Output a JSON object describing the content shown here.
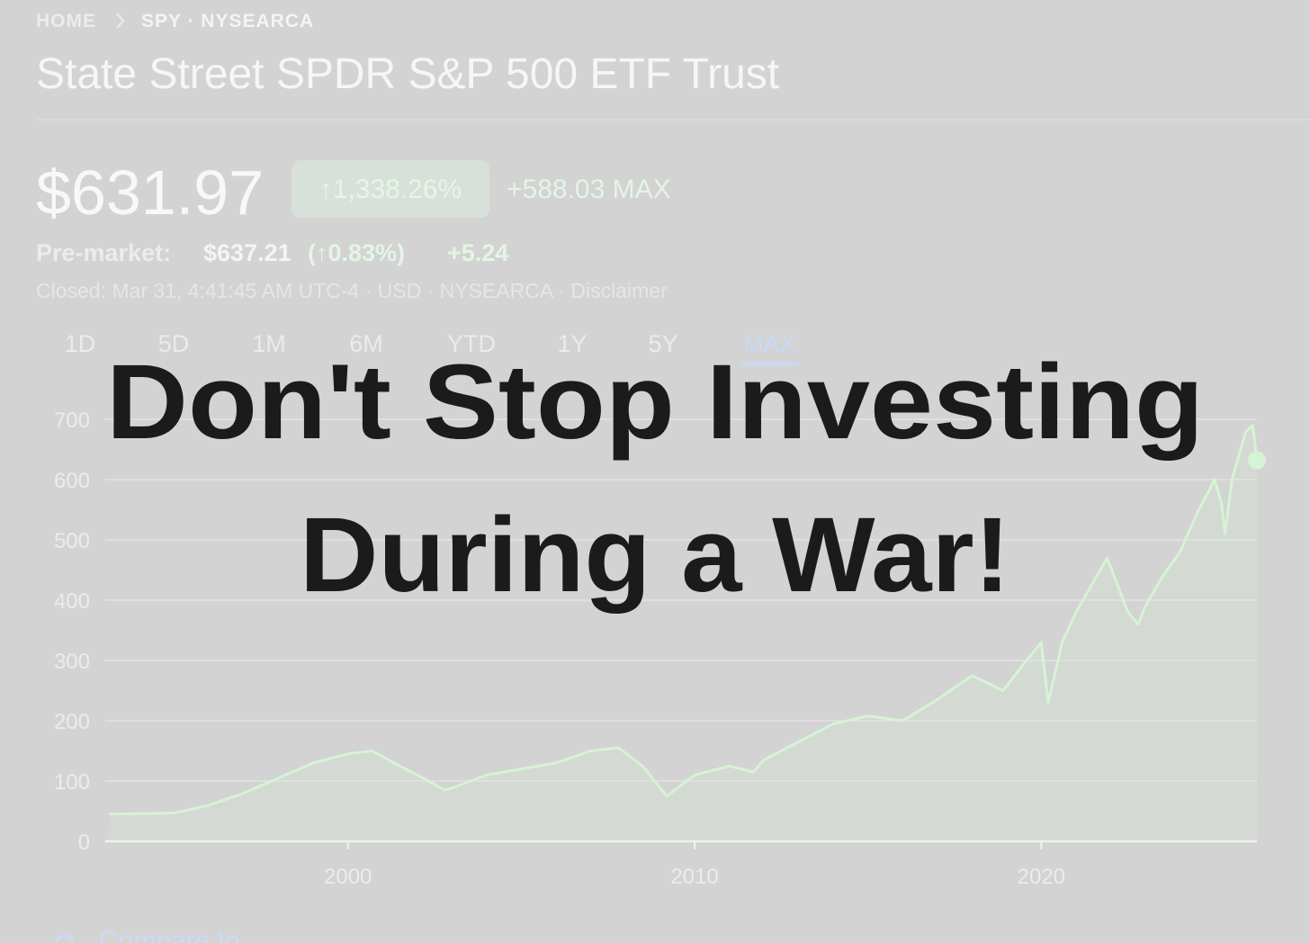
{
  "breadcrumb": {
    "home": "HOME",
    "ticker": "SPY · NYSEARCA"
  },
  "header": {
    "title": "State Street SPDR S&P 500 ETF Trust"
  },
  "quote": {
    "price": "$631.97",
    "change_percent": "↑1,338.26%",
    "change": "+588.03 MAX"
  },
  "premarket": {
    "label": "Pre-market:",
    "price": "$637.21",
    "change_percent": "(↑0.83%)",
    "change": "+5.24"
  },
  "status": "Closed: Mar 31, 4:41:45 AM UTC-4 · USD · NYSEARCA · Disclaimer",
  "ranges": [
    "1D",
    "5D",
    "1M",
    "6M",
    "YTD",
    "1Y",
    "5Y",
    "MAX"
  ],
  "active_range": 7,
  "chart": {
    "type": "line",
    "color": "#d6f3d4",
    "x": [
      1993.1,
      1995,
      1996,
      1997,
      1998,
      1999,
      2000,
      2000.7,
      2001.5,
      2002,
      2002.8,
      2003,
      2004,
      2005,
      2006,
      2007,
      2007.8,
      2008.5,
      2009.2,
      2010,
      2011,
      2011.7,
      2012,
      2013,
      2014,
      2015,
      2016,
      2017,
      2018,
      2018.9,
      2019.5,
      2020,
      2020.2,
      2020.6,
      2021,
      2021.9,
      2022.5,
      2022.8,
      2023,
      2023.5,
      2024,
      2024.5,
      2025,
      2025.2,
      2025.3,
      2025.5,
      2025.9,
      2026.1,
      2026.22
    ],
    "values": [
      45,
      47,
      60,
      80,
      105,
      130,
      145,
      150,
      125,
      110,
      85,
      88,
      110,
      120,
      130,
      150,
      155,
      125,
      75,
      110,
      125,
      115,
      135,
      165,
      195,
      208,
      200,
      235,
      275,
      250,
      295,
      330,
      230,
      330,
      380,
      470,
      380,
      360,
      390,
      440,
      480,
      545,
      600,
      560,
      510,
      600,
      680,
      690,
      632
    ],
    "xlim": [
      1993,
      2026.22
    ],
    "xticks": [
      2000,
      2010,
      2020
    ],
    "ylim": [
      0,
      700
    ],
    "yticks": [
      0,
      100,
      200,
      300,
      400,
      500,
      600,
      700
    ],
    "grid": true
  },
  "overlay": {
    "line1": "Don't Stop Investing",
    "line2": "During a War!"
  },
  "compare": "Compare to"
}
